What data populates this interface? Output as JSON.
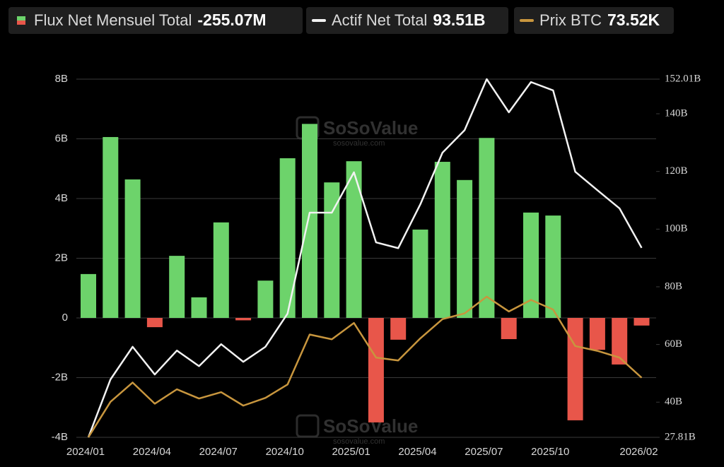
{
  "chart_data": {
    "type": "bar",
    "watermark": "SoSoValue",
    "watermark_url": "sosovalue.com",
    "categories": [
      "2024/01",
      null,
      null,
      "2024/04",
      null,
      null,
      "2024/07",
      null,
      null,
      "2024/10",
      null,
      null,
      "2025/01",
      null,
      null,
      "2025/04",
      null,
      null,
      "2025/07",
      null,
      null,
      "2025/10",
      null,
      null,
      null,
      "2026/02"
    ],
    "series": [
      {
        "name": "Flux Net Mensuel Total",
        "type": "bar",
        "color": "#6dd36b",
        "negative_color": "#e8564a",
        "values": [
          1.47,
          6.06,
          4.64,
          -0.31,
          2.08,
          0.69,
          3.2,
          -0.08,
          1.25,
          5.35,
          6.5,
          4.54,
          5.25,
          -3.5,
          -0.73,
          2.96,
          5.23,
          4.62,
          6.03,
          -0.71,
          3.53,
          3.43,
          -3.43,
          -1.07,
          -1.56,
          -0.25507
        ],
        "current": {
          "value": -0.25507,
          "label": "-255.07M"
        }
      },
      {
        "name": "Actif Net Total",
        "type": "line",
        "axis": "y2",
        "color": "#f2f2f2",
        "values": [
          27.81,
          47.9,
          59.2,
          49.6,
          57.9,
          52.5,
          60.1,
          54.0,
          59.2,
          70.7,
          105.7,
          105.7,
          119.7,
          95.4,
          93.4,
          108.6,
          126.5,
          134.3,
          152.01,
          140.5,
          151.0,
          148.1,
          119.9,
          113.5,
          107.2,
          93.51
        ],
        "current": {
          "value": 93.51,
          "label": "93.51B"
        }
      },
      {
        "name": "Prix BTC",
        "type": "line",
        "axis": "y3",
        "color": "#c8963e",
        "values": [
          42.5,
          61.0,
          71.0,
          60.0,
          67.5,
          62.7,
          66.0,
          59.0,
          63.0,
          70.0,
          96.0,
          93.5,
          102.0,
          84.0,
          82.5,
          94.0,
          104.0,
          107.0,
          115.7,
          108.0,
          114.0,
          109.0,
          90.0,
          87.5,
          84.0,
          73.52
        ],
        "current": {
          "value": 73.52,
          "label": "73.52K"
        }
      }
    ],
    "ylim": [
      -4,
      8
    ],
    "yticks": [
      {
        "value": -4,
        "label": "-4B"
      },
      {
        "value": -2,
        "label": "-2B"
      },
      {
        "value": 0,
        "label": "0"
      },
      {
        "value": 2,
        "label": "2B"
      },
      {
        "value": 4,
        "label": "4B"
      },
      {
        "value": 6,
        "label": "6B"
      },
      {
        "value": 8,
        "label": "8B"
      }
    ],
    "y2lim": [
      27.81,
      152.01
    ],
    "y2ticks": [
      {
        "value": 27.81,
        "label": "27.81B"
      },
      {
        "value": 40,
        "label": "40B"
      },
      {
        "value": 60,
        "label": "60B"
      },
      {
        "value": 80,
        "label": "80B"
      },
      {
        "value": 100,
        "label": "100B"
      },
      {
        "value": 120,
        "label": "120B"
      },
      {
        "value": 140,
        "label": "140B"
      },
      {
        "value": 152.01,
        "label": "152.01B"
      }
    ],
    "y3lim": [
      42.5,
      228.9
    ],
    "grid": true
  }
}
